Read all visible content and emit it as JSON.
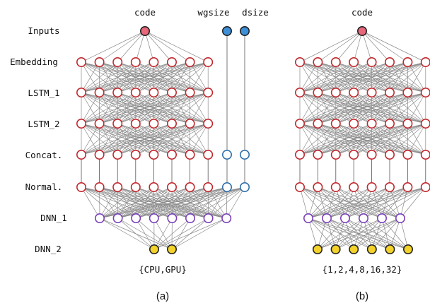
{
  "layers": [
    "Inputs",
    "Embedding",
    "LSTM_1",
    "LSTM_2",
    "Concat.",
    "Normal.",
    "DNN_1",
    "DNN_2"
  ],
  "panels": [
    {
      "caption": "(a)",
      "output_label": "{CPU,GPU}",
      "input_labels": {
        "code": "code",
        "wgsize": "wgsize",
        "dsize": "dsize"
      },
      "counts": {
        "main": 8,
        "dnn1": 8,
        "outputs": 2,
        "extra_inputs": 2
      }
    },
    {
      "caption": "(b)",
      "output_label": "{1,2,4,8,16,32}",
      "input_labels": {
        "code": "code"
      },
      "counts": {
        "main": 8,
        "dnn1": 6,
        "outputs": 6,
        "extra_inputs": 0
      }
    }
  ],
  "colors": {
    "code_input": "#e8677a",
    "aux_input": "#3d8fd8",
    "hidden_stroke": "#c0282d",
    "aux_stroke": "#2f6fab",
    "dnn1_stroke": "#7a3fb8",
    "output_fill": "#f2d22b",
    "edge": "#8a8a8a"
  }
}
